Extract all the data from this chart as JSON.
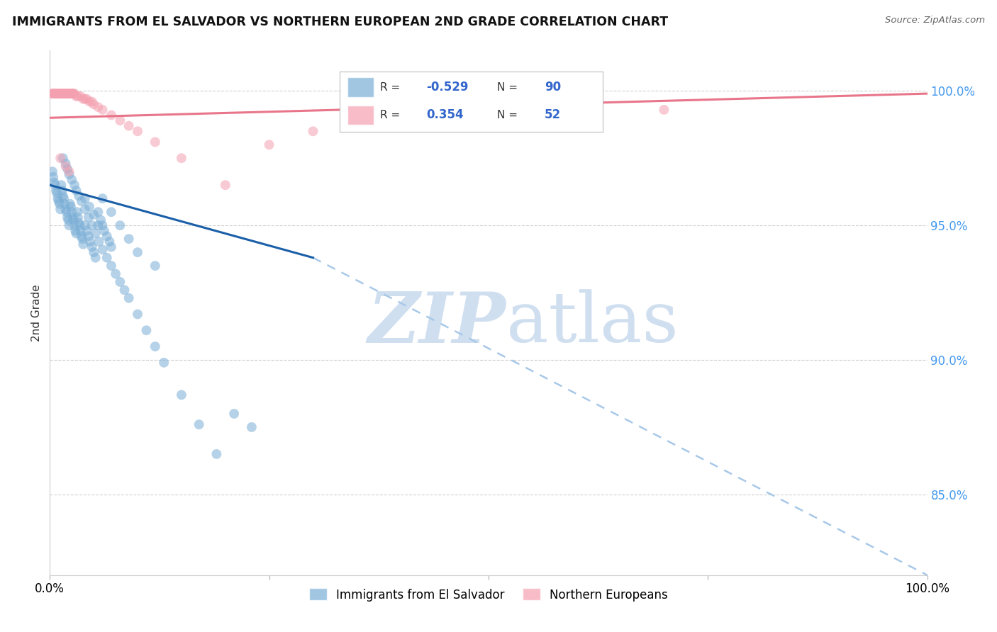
{
  "title": "IMMIGRANTS FROM EL SALVADOR VS NORTHERN EUROPEAN 2ND GRADE CORRELATION CHART",
  "source": "Source: ZipAtlas.com",
  "ylabel": "2nd Grade",
  "xlim": [
    0.0,
    1.0
  ],
  "ylim": [
    0.82,
    1.015
  ],
  "yticks": [
    0.85,
    0.9,
    0.95,
    1.0
  ],
  "ytick_labels": [
    "85.0%",
    "90.0%",
    "95.0%",
    "100.0%"
  ],
  "xticks": [
    0.0,
    0.25,
    0.5,
    0.75,
    1.0
  ],
  "xtick_labels": [
    "0.0%",
    "",
    "",
    "",
    "100.0%"
  ],
  "blue_R": -0.529,
  "blue_N": 90,
  "pink_R": 0.354,
  "pink_N": 52,
  "blue_color": "#7aaed6",
  "pink_color": "#f4a0b0",
  "blue_line_color": "#1a5fa8",
  "pink_line_color": "#e8758a",
  "trend_dashed_color": "#a8c8e8",
  "watermark_color": "#d0dff0",
  "legend_label_blue": "Immigrants from El Salvador",
  "legend_label_pink": "Northern Europeans",
  "background_color": "#FFFFFF",
  "grid_color": "#cccccc",
  "title_color": "#111111",
  "source_color": "#666666",
  "blue_line_x0": 0.0,
  "blue_line_y0": 0.965,
  "blue_line_x1": 0.3,
  "blue_line_y1": 0.938,
  "blue_line_xdash": 1.0,
  "blue_line_ydash": 0.82,
  "pink_line_x0": 0.0,
  "pink_line_y0": 0.99,
  "pink_line_x1": 1.0,
  "pink_line_y1": 0.999,
  "blue_scatter_x": [
    0.003,
    0.004,
    0.005,
    0.006,
    0.007,
    0.008,
    0.009,
    0.01,
    0.011,
    0.012,
    0.013,
    0.014,
    0.015,
    0.016,
    0.017,
    0.018,
    0.019,
    0.02,
    0.021,
    0.022,
    0.023,
    0.024,
    0.025,
    0.026,
    0.027,
    0.028,
    0.029,
    0.03,
    0.031,
    0.032,
    0.033,
    0.034,
    0.035,
    0.036,
    0.037,
    0.038,
    0.04,
    0.042,
    0.044,
    0.046,
    0.048,
    0.05,
    0.052,
    0.055,
    0.058,
    0.06,
    0.062,
    0.065,
    0.068,
    0.07,
    0.015,
    0.018,
    0.02,
    0.022,
    0.025,
    0.028,
    0.03,
    0.033,
    0.036,
    0.04,
    0.044,
    0.048,
    0.052,
    0.056,
    0.06,
    0.065,
    0.07,
    0.075,
    0.08,
    0.085,
    0.09,
    0.1,
    0.11,
    0.12,
    0.13,
    0.15,
    0.17,
    0.19,
    0.21,
    0.23,
    0.04,
    0.045,
    0.05,
    0.055,
    0.06,
    0.07,
    0.08,
    0.09,
    0.1,
    0.12
  ],
  "blue_scatter_y": [
    0.97,
    0.968,
    0.966,
    0.965,
    0.963,
    0.962,
    0.96,
    0.959,
    0.958,
    0.956,
    0.965,
    0.963,
    0.961,
    0.96,
    0.958,
    0.956,
    0.955,
    0.953,
    0.952,
    0.95,
    0.958,
    0.957,
    0.955,
    0.953,
    0.952,
    0.95,
    0.948,
    0.947,
    0.955,
    0.953,
    0.951,
    0.95,
    0.948,
    0.946,
    0.945,
    0.943,
    0.95,
    0.948,
    0.946,
    0.944,
    0.942,
    0.94,
    0.938,
    0.955,
    0.952,
    0.95,
    0.948,
    0.946,
    0.944,
    0.942,
    0.975,
    0.973,
    0.971,
    0.969,
    0.967,
    0.965,
    0.963,
    0.961,
    0.959,
    0.956,
    0.953,
    0.95,
    0.947,
    0.944,
    0.941,
    0.938,
    0.935,
    0.932,
    0.929,
    0.926,
    0.923,
    0.917,
    0.911,
    0.905,
    0.899,
    0.887,
    0.876,
    0.865,
    0.88,
    0.875,
    0.96,
    0.957,
    0.954,
    0.95,
    0.96,
    0.955,
    0.95,
    0.945,
    0.94,
    0.935
  ],
  "pink_scatter_x": [
    0.002,
    0.003,
    0.004,
    0.005,
    0.006,
    0.007,
    0.008,
    0.009,
    0.01,
    0.011,
    0.012,
    0.013,
    0.014,
    0.015,
    0.016,
    0.017,
    0.018,
    0.019,
    0.02,
    0.021,
    0.022,
    0.023,
    0.024,
    0.025,
    0.026,
    0.027,
    0.028,
    0.03,
    0.032,
    0.035,
    0.038,
    0.04,
    0.042,
    0.045,
    0.048,
    0.05,
    0.055,
    0.06,
    0.07,
    0.08,
    0.09,
    0.1,
    0.12,
    0.15,
    0.2,
    0.25,
    0.3,
    0.012,
    0.018,
    0.022,
    0.5,
    0.7
  ],
  "pink_scatter_y": [
    0.999,
    0.999,
    0.999,
    0.999,
    0.999,
    0.999,
    0.999,
    0.999,
    0.999,
    0.999,
    0.999,
    0.999,
    0.999,
    0.999,
    0.999,
    0.999,
    0.999,
    0.999,
    0.999,
    0.999,
    0.999,
    0.999,
    0.999,
    0.999,
    0.999,
    0.999,
    0.999,
    0.998,
    0.998,
    0.998,
    0.997,
    0.997,
    0.997,
    0.996,
    0.996,
    0.995,
    0.994,
    0.993,
    0.991,
    0.989,
    0.987,
    0.985,
    0.981,
    0.975,
    0.965,
    0.98,
    0.985,
    0.975,
    0.972,
    0.97,
    0.99,
    0.993
  ]
}
